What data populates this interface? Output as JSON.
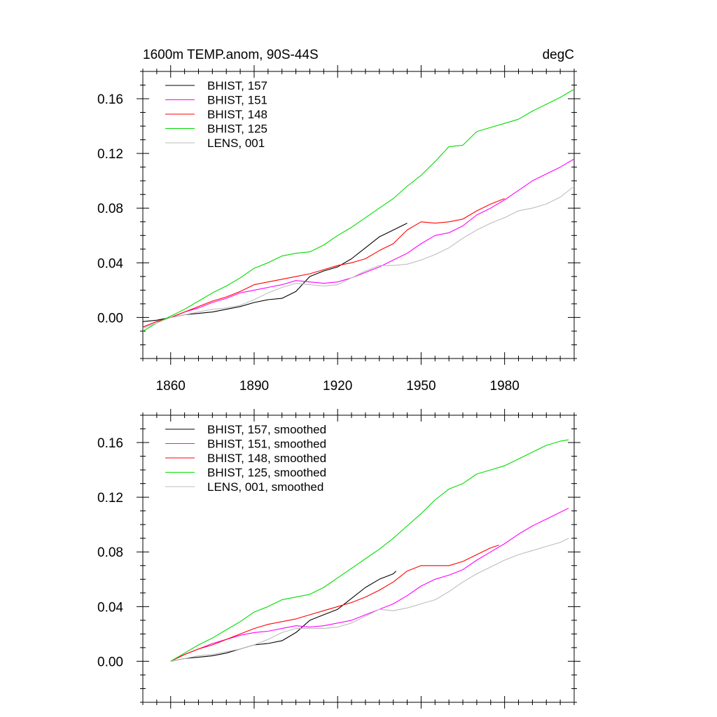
{
  "header": {
    "title": "1600m TEMP.anom, 90S-44S",
    "units": "degC"
  },
  "colors": {
    "157": "#000000",
    "151": "#ff00ff",
    "148": "#ff0000",
    "125": "#00dd00",
    "001": "#bdbdbd"
  },
  "chart_data": [
    {
      "type": "line",
      "title": "1600m TEMP.anom, 90S-44S",
      "units": "degC",
      "xlabel": "",
      "ylabel": "",
      "xlim": [
        1850,
        2005
      ],
      "ylim": [
        -0.03,
        0.18
      ],
      "xticks": [
        1860,
        1890,
        1920,
        1950,
        1980
      ],
      "xtick_labels": [
        "1860",
        "1890",
        "1920",
        "1950",
        "1980"
      ],
      "yticks": [
        0.0,
        0.04,
        0.08,
        0.12,
        0.16
      ],
      "ytick_labels": [
        "0.00",
        "0.04",
        "0.08",
        "0.12",
        "0.16"
      ],
      "legend_position": "top-left",
      "series": [
        {
          "name": "BHIST, 157",
          "key": "157",
          "x": [
            1850,
            1855,
            1860,
            1865,
            1870,
            1875,
            1880,
            1885,
            1890,
            1895,
            1900,
            1905,
            1910,
            1915,
            1920,
            1925,
            1930,
            1935,
            1940,
            1945
          ],
          "y": [
            -0.003,
            -0.002,
            0.0,
            0.002,
            0.003,
            0.004,
            0.006,
            0.008,
            0.011,
            0.013,
            0.014,
            0.019,
            0.03,
            0.034,
            0.037,
            0.043,
            0.051,
            0.059,
            0.064,
            0.069
          ]
        },
        {
          "name": "BHIST, 151",
          "key": "151",
          "x": [
            1850,
            1855,
            1860,
            1865,
            1870,
            1875,
            1880,
            1885,
            1890,
            1895,
            1900,
            1905,
            1910,
            1915,
            1920,
            1925,
            1930,
            1935,
            1940,
            1945,
            1950,
            1955,
            1960,
            1965,
            1970,
            1975,
            1980,
            1985,
            1990,
            1995,
            2000,
            2005
          ],
          "y": [
            -0.007,
            -0.003,
            0.0,
            0.004,
            0.007,
            0.011,
            0.014,
            0.018,
            0.02,
            0.022,
            0.024,
            0.027,
            0.026,
            0.025,
            0.026,
            0.029,
            0.033,
            0.037,
            0.042,
            0.047,
            0.054,
            0.06,
            0.062,
            0.067,
            0.075,
            0.08,
            0.086,
            0.093,
            0.1,
            0.105,
            0.11,
            0.116
          ]
        },
        {
          "name": "BHIST, 148",
          "key": "148",
          "x": [
            1850,
            1855,
            1860,
            1865,
            1870,
            1875,
            1880,
            1885,
            1890,
            1895,
            1900,
            1905,
            1910,
            1915,
            1920,
            1925,
            1930,
            1935,
            1940,
            1945,
            1950,
            1955,
            1960,
            1965,
            1970,
            1975,
            1980
          ],
          "y": [
            -0.007,
            -0.003,
            0.0,
            0.004,
            0.008,
            0.012,
            0.015,
            0.019,
            0.024,
            0.026,
            0.028,
            0.03,
            0.032,
            0.035,
            0.038,
            0.04,
            0.043,
            0.049,
            0.054,
            0.064,
            0.07,
            0.069,
            0.07,
            0.072,
            0.078,
            0.083,
            0.087
          ]
        },
        {
          "name": "BHIST, 125",
          "key": "125",
          "x": [
            1850,
            1855,
            1860,
            1865,
            1870,
            1875,
            1880,
            1885,
            1890,
            1895,
            1900,
            1905,
            1910,
            1915,
            1920,
            1925,
            1930,
            1935,
            1940,
            1945,
            1950,
            1955,
            1960,
            1965,
            1970,
            1975,
            1980,
            1985,
            1990,
            1995,
            2000,
            2005
          ],
          "y": [
            -0.01,
            -0.004,
            0.001,
            0.006,
            0.012,
            0.018,
            0.023,
            0.029,
            0.036,
            0.04,
            0.045,
            0.047,
            0.048,
            0.053,
            0.06,
            0.066,
            0.073,
            0.08,
            0.087,
            0.096,
            0.104,
            0.114,
            0.125,
            0.126,
            0.136,
            0.139,
            0.142,
            0.145,
            0.151,
            0.156,
            0.161,
            0.167
          ]
        },
        {
          "name": "LENS, 001",
          "key": "001",
          "x": [
            1850,
            1855,
            1860,
            1865,
            1870,
            1875,
            1880,
            1885,
            1890,
            1895,
            1900,
            1905,
            1910,
            1915,
            1920,
            1925,
            1930,
            1935,
            1940,
            1945,
            1950,
            1955,
            1960,
            1965,
            1970,
            1975,
            1980,
            1985,
            1990,
            1995,
            2000,
            2005
          ],
          "y": [
            -0.008,
            -0.004,
            0.0,
            0.002,
            0.004,
            0.006,
            0.007,
            0.009,
            0.013,
            0.018,
            0.022,
            0.025,
            0.024,
            0.023,
            0.024,
            0.029,
            0.034,
            0.038,
            0.038,
            0.039,
            0.042,
            0.046,
            0.051,
            0.058,
            0.064,
            0.069,
            0.073,
            0.078,
            0.08,
            0.083,
            0.088,
            0.096
          ]
        }
      ]
    },
    {
      "type": "line",
      "title": "",
      "xlabel": "",
      "ylabel": "",
      "xlim": [
        1850,
        2005
      ],
      "ylim": [
        -0.03,
        0.18
      ],
      "xticks": [
        1860,
        1890,
        1920,
        1950,
        1980
      ],
      "yticks": [
        0.0,
        0.04,
        0.08,
        0.12,
        0.16
      ],
      "ytick_labels": [
        "0.00",
        "0.04",
        "0.08",
        "0.12",
        "0.16"
      ],
      "legend_position": "top-left",
      "series": [
        {
          "name": "BHIST, 157, smoothed",
          "key": "157",
          "x": [
            1860,
            1865,
            1870,
            1875,
            1880,
            1885,
            1890,
            1895,
            1900,
            1905,
            1910,
            1915,
            1920,
            1925,
            1930,
            1935,
            1940,
            1941
          ],
          "y": [
            0.0,
            0.002,
            0.003,
            0.004,
            0.006,
            0.009,
            0.012,
            0.013,
            0.015,
            0.021,
            0.03,
            0.034,
            0.038,
            0.046,
            0.054,
            0.06,
            0.064,
            0.066
          ]
        },
        {
          "name": "BHIST, 151, smoothed",
          "key": "151",
          "x": [
            1860,
            1865,
            1870,
            1875,
            1880,
            1885,
            1890,
            1895,
            1900,
            1905,
            1910,
            1915,
            1920,
            1925,
            1930,
            1935,
            1940,
            1945,
            1950,
            1955,
            1960,
            1965,
            1970,
            1975,
            1980,
            1985,
            1990,
            1995,
            2000,
            2003
          ],
          "y": [
            0.0,
            0.005,
            0.009,
            0.013,
            0.016,
            0.019,
            0.021,
            0.022,
            0.024,
            0.026,
            0.025,
            0.026,
            0.028,
            0.03,
            0.034,
            0.038,
            0.042,
            0.048,
            0.055,
            0.06,
            0.063,
            0.067,
            0.074,
            0.08,
            0.086,
            0.093,
            0.099,
            0.104,
            0.109,
            0.112
          ]
        },
        {
          "name": "BHIST, 148, smoothed",
          "key": "148",
          "x": [
            1860,
            1865,
            1870,
            1875,
            1880,
            1885,
            1890,
            1895,
            1900,
            1905,
            1910,
            1915,
            1920,
            1925,
            1930,
            1935,
            1940,
            1945,
            1950,
            1955,
            1960,
            1965,
            1970,
            1975,
            1978
          ],
          "y": [
            0.0,
            0.005,
            0.009,
            0.012,
            0.016,
            0.02,
            0.024,
            0.027,
            0.029,
            0.031,
            0.034,
            0.037,
            0.04,
            0.043,
            0.047,
            0.052,
            0.058,
            0.066,
            0.07,
            0.07,
            0.07,
            0.073,
            0.078,
            0.083,
            0.085
          ]
        },
        {
          "name": "BHIST, 125, smoothed",
          "key": "125",
          "x": [
            1860,
            1865,
            1870,
            1875,
            1880,
            1885,
            1890,
            1895,
            1900,
            1905,
            1910,
            1915,
            1920,
            1925,
            1930,
            1935,
            1940,
            1945,
            1950,
            1955,
            1960,
            1965,
            1970,
            1975,
            1980,
            1985,
            1990,
            1995,
            2000,
            2003
          ],
          "y": [
            0.0,
            0.006,
            0.012,
            0.017,
            0.023,
            0.029,
            0.036,
            0.04,
            0.045,
            0.047,
            0.049,
            0.054,
            0.061,
            0.068,
            0.075,
            0.082,
            0.09,
            0.099,
            0.108,
            0.118,
            0.126,
            0.13,
            0.137,
            0.14,
            0.143,
            0.148,
            0.153,
            0.158,
            0.161,
            0.162
          ]
        },
        {
          "name": "LENS, 001, smoothed",
          "key": "001",
          "x": [
            1860,
            1865,
            1870,
            1875,
            1880,
            1885,
            1890,
            1895,
            1900,
            1905,
            1910,
            1915,
            1920,
            1925,
            1930,
            1935,
            1940,
            1945,
            1950,
            1955,
            1960,
            1965,
            1970,
            1975,
            1980,
            1985,
            1990,
            1995,
            2000,
            2003
          ],
          "y": [
            0.0,
            0.002,
            0.004,
            0.005,
            0.007,
            0.009,
            0.012,
            0.016,
            0.021,
            0.024,
            0.024,
            0.024,
            0.025,
            0.028,
            0.033,
            0.038,
            0.037,
            0.039,
            0.042,
            0.045,
            0.051,
            0.058,
            0.064,
            0.069,
            0.074,
            0.078,
            0.081,
            0.084,
            0.087,
            0.09
          ]
        }
      ]
    }
  ]
}
